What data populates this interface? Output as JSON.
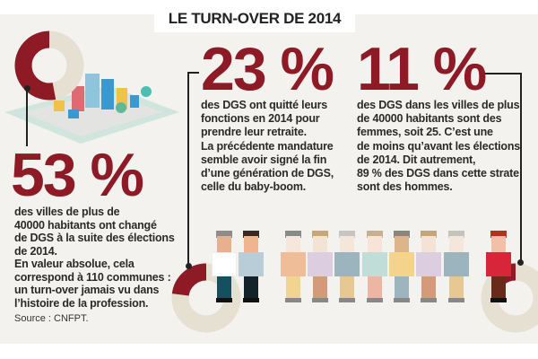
{
  "title": "LE TURN-OVER DE 2014",
  "colors": {
    "accent": "#8d1a25",
    "donut_rest": "#e5e0d1",
    "background": "#f3f2ee"
  },
  "stat1": {
    "value": "53 %",
    "percent": 53,
    "lines": [
      "des villes de plus de",
      "40000 habitants ont changé",
      "de DGS à la suite des élections",
      "de 2014.",
      "En valeur absolue, cela",
      "correspond à 110 communes :",
      "un turn-over jamais vu dans",
      "l’histoire de la profession."
    ],
    "source": "Source : CNFPT."
  },
  "stat2": {
    "value": "23 %",
    "percent": 23,
    "lines": [
      "des DGS ont quitté leurs",
      "fonctions en 2014 pour",
      "prendre leur retraite.",
      "La précédente mandature",
      "semble avoir signé la fin",
      "d’une génération de DGS,",
      "celle du baby-boom."
    ]
  },
  "stat3": {
    "value": "11 %",
    "percent": 11,
    "lines": [
      "des DGS dans les villes de plus",
      "de 40000 habitants sont des",
      "femmes, soit 25. C’est une",
      "de moins qu’avant les élections",
      "de 2014. Dit autrement,",
      "89 % des DGS dans cette strate",
      "sont des hommes."
    ]
  },
  "people": [
    {
      "hair": "#8c8c8c",
      "skin": "#e8b08f",
      "shirt": "#ffffff",
      "pants": "#14505f",
      "shoes": "#111"
    },
    {
      "hair": "#3a2a20",
      "skin": "#f0b48f",
      "shirt": "#b8cdd8",
      "pants": "#14222a",
      "shoes": "#111"
    },
    {
      "hair": "#8a8a88",
      "skin": "#f7e6dc",
      "shirt": "#efbd98",
      "pants": "#f2d492",
      "shoes": "#888"
    },
    {
      "hair": "#c7a678",
      "skin": "#f3e3d5",
      "shirt": "#dccde0",
      "pants": "#d39b7a",
      "shoes": "#888"
    },
    {
      "hair": "#c8c5c0",
      "skin": "#f5e6dc",
      "shirt": "#9bb4bd",
      "pants": "#e6c892",
      "shoes": "#888"
    },
    {
      "hair": "#c9b08c",
      "skin": "#f7e3d7",
      "shirt": "#c1ddd8",
      "pants": "#ebb6a3",
      "shoes": "#888"
    },
    {
      "hair": "#8a8580",
      "skin": "#dcb58a",
      "shirt": "#f4d38b",
      "pants": "#9fb5bd",
      "shoes": "#888"
    },
    {
      "hair": "#c5a57a",
      "skin": "#f3e2d5",
      "shirt": "#dccde0",
      "pants": "#d39b7a",
      "shoes": "#888"
    },
    {
      "hair": "#c5c3be",
      "skin": "#f5e6dc",
      "shirt": "#9bb4bd",
      "pants": "#e6c892",
      "shoes": "#888"
    },
    {
      "hair": "#b0321f",
      "skin": "#f2c0a8",
      "shirt": "#d7263a",
      "pants": "#6a2a1a",
      "shoes": "#111"
    }
  ]
}
